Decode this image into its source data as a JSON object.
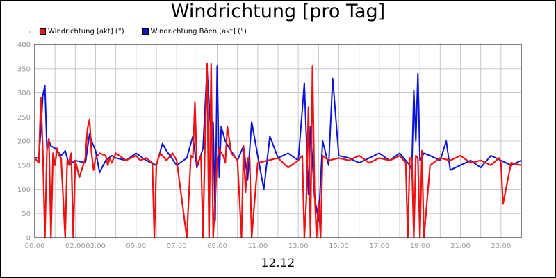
{
  "chart_data": {
    "type": "line",
    "title": "Windrichtung [pro Tag]",
    "xlabel": "12.12",
    "ylabel": "",
    "ylim": [
      0,
      400
    ],
    "xlim": [
      0,
      24
    ],
    "grid": true,
    "legend_position": "top-left",
    "y_ticks": [
      "0",
      "50",
      "100",
      "150",
      "200",
      "250",
      "300",
      "350",
      "400"
    ],
    "x_ticks": [
      {
        "h": 0,
        "label": "00:00"
      },
      {
        "h": 2,
        "label": "02:00"
      },
      {
        "h": 3,
        "label": "03:00"
      },
      {
        "h": 5,
        "label": "05:00"
      },
      {
        "h": 7,
        "label": "07:00"
      },
      {
        "h": 9,
        "label": "09:00"
      },
      {
        "h": 11,
        "label": "11:00"
      },
      {
        "h": 13,
        "label": "13:00"
      },
      {
        "h": 15,
        "label": "15:00"
      },
      {
        "h": 17,
        "label": "17:00"
      },
      {
        "h": 19,
        "label": "19:00"
      },
      {
        "h": 21,
        "label": "21:00"
      },
      {
        "h": 23,
        "label": "23:00"
      }
    ],
    "series": [
      {
        "name": "Windrichtung [akt] (°)",
        "color": "#ee1111",
        "x": [
          0,
          0.2,
          0.3,
          0.4,
          0.5,
          0.6,
          0.7,
          0.8,
          0.9,
          1.0,
          1.1,
          1.2,
          1.3,
          1.5,
          1.6,
          1.7,
          1.8,
          1.9,
          2.0,
          2.2,
          2.5,
          2.6,
          2.7,
          2.8,
          2.9,
          3.0,
          3.2,
          3.5,
          3.6,
          3.7,
          3.8,
          4.0,
          4.5,
          5.0,
          5.2,
          5.5,
          5.8,
          5.9,
          6.0,
          6.1,
          6.2,
          6.5,
          6.8,
          7.0,
          7.5,
          7.7,
          7.8,
          7.9,
          8.0,
          8.2,
          8.3,
          8.4,
          8.5,
          8.6,
          8.7,
          8.8,
          9.0,
          9.1,
          9.2,
          9.3,
          9.4,
          9.5,
          9.7,
          10.0,
          10.2,
          10.3,
          10.4,
          10.5,
          10.6,
          10.7,
          11.0,
          11.5,
          12.0,
          12.5,
          13.0,
          13.2,
          13.3,
          13.4,
          13.5,
          13.6,
          13.7,
          13.8,
          13.9,
          14.0,
          14.1,
          14.2,
          14.5,
          15.0,
          15.5,
          16.0,
          16.5,
          17.0,
          17.5,
          17.8,
          18.0,
          18.3,
          18.4,
          18.5,
          18.6,
          18.7,
          18.8,
          18.9,
          19.0,
          19.1,
          19.2,
          19.5,
          20.0,
          20.5,
          21.0,
          21.5,
          22.0,
          22.5,
          22.9,
          23.0,
          23.1,
          23.5,
          24.0
        ],
        "values": [
          165,
          155,
          290,
          175,
          0,
          180,
          205,
          0,
          175,
          150,
          185,
          170,
          165,
          0,
          160,
          150,
          175,
          0,
          160,
          125,
          165,
          225,
          245,
          175,
          140,
          165,
          175,
          170,
          150,
          165,
          155,
          175,
          160,
          170,
          160,
          165,
          155,
          0,
          150,
          165,
          175,
          160,
          175,
          160,
          0,
          170,
          165,
          280,
          150,
          170,
          0,
          200,
          360,
          0,
          360,
          0,
          160,
          185,
          175,
          170,
          155,
          230,
          175,
          160,
          0,
          190,
          95,
          165,
          165,
          0,
          155,
          160,
          165,
          145,
          160,
          170,
          0,
          80,
          270,
          0,
          355,
          100,
          0,
          75,
          0,
          170,
          160,
          165,
          160,
          170,
          155,
          165,
          160,
          165,
          170,
          155,
          0,
          165,
          165,
          0,
          170,
          165,
          0,
          180,
          0,
          150,
          165,
          160,
          170,
          155,
          160,
          150,
          165,
          155,
          70,
          155,
          150
        ],
        "labels": []
      },
      {
        "name": "Windrichtung Böen [akt] (°)",
        "color": "#0a14d6",
        "x": [
          0,
          0.2,
          0.3,
          0.4,
          0.5,
          0.6,
          0.7,
          0.8,
          1.0,
          1.3,
          1.5,
          1.7,
          2.0,
          2.5,
          2.7,
          2.8,
          3.0,
          3.2,
          3.5,
          3.8,
          4.0,
          4.5,
          5.0,
          5.5,
          6.0,
          6.3,
          6.5,
          7.0,
          7.5,
          7.8,
          8.0,
          8.3,
          8.5,
          8.7,
          8.8,
          8.9,
          9.0,
          9.1,
          9.2,
          9.4,
          9.6,
          10.0,
          10.3,
          10.5,
          10.7,
          11.0,
          11.3,
          11.6,
          12.0,
          12.5,
          13.0,
          13.3,
          13.5,
          13.6,
          13.8,
          14.0,
          14.2,
          14.5,
          14.7,
          15.0,
          15.5,
          16.0,
          16.5,
          17.0,
          17.5,
          18.0,
          18.5,
          18.6,
          18.7,
          18.8,
          18.9,
          19.0,
          19.2,
          19.5,
          20.0,
          20.3,
          20.5,
          21.0,
          21.5,
          22.0,
          22.5,
          23.0,
          23.5,
          24.0
        ],
        "values": [
          165,
          165,
          225,
          295,
          315,
          185,
          200,
          190,
          185,
          170,
          180,
          150,
          160,
          155,
          215,
          200,
          180,
          135,
          160,
          170,
          165,
          160,
          175,
          160,
          150,
          195,
          180,
          150,
          165,
          210,
          145,
          185,
          350,
          205,
          240,
          35,
          355,
          125,
          230,
          200,
          185,
          160,
          190,
          120,
          240,
          170,
          100,
          210,
          165,
          175,
          160,
          320,
          90,
          230,
          85,
          35,
          200,
          150,
          330,
          170,
          165,
          155,
          165,
          175,
          160,
          175,
          150,
          140,
          305,
          200,
          340,
          160,
          175,
          170,
          160,
          200,
          140,
          150,
          160,
          145,
          170,
          160,
          150,
          160
        ]
      }
    ]
  }
}
